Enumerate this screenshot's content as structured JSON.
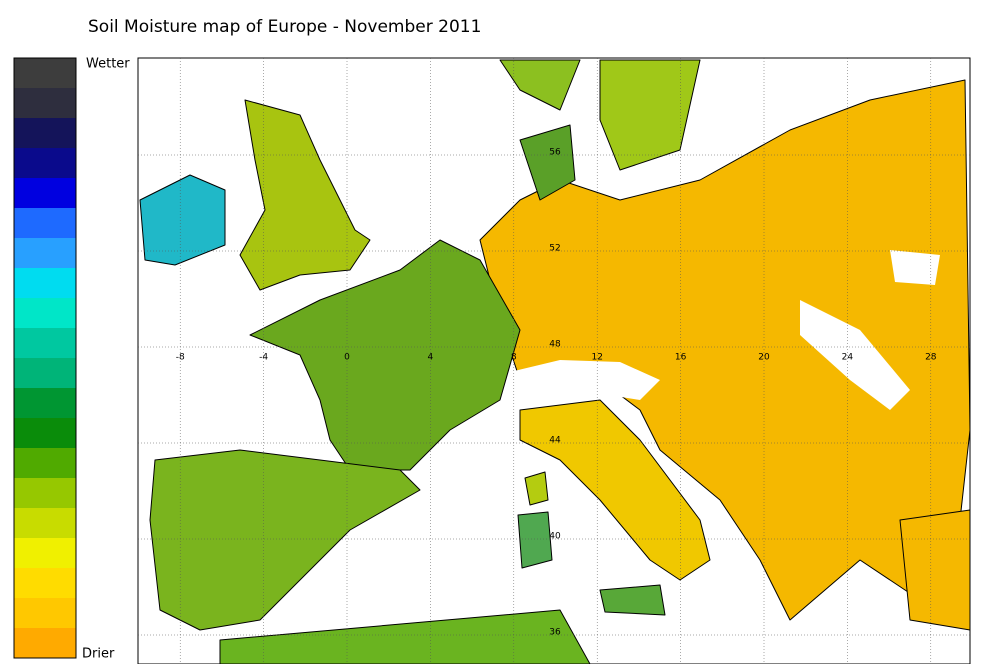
{
  "title": "Soil Moisture map of Europe - November 2011",
  "legend": {
    "top_label": "Wetter",
    "bottom_label": "Drier",
    "colors": [
      "#3d3d3d",
      "#2e2e3e",
      "#14145a",
      "#0a0a8c",
      "#0000e0",
      "#1e6aff",
      "#28a0ff",
      "#00dcf0",
      "#00e6c8",
      "#00c8a0",
      "#00b478",
      "#009632",
      "#0a8c0a",
      "#50aa00",
      "#96c800",
      "#c8dc00",
      "#f0f000",
      "#ffdc00",
      "#ffc800",
      "#ffaa00"
    ]
  },
  "map": {
    "lon_ticks": [
      -8,
      -4,
      0,
      4,
      8,
      12,
      16,
      20,
      24,
      28
    ],
    "lat_ticks": [
      56,
      52,
      48,
      44,
      40,
      36
    ]
  }
}
